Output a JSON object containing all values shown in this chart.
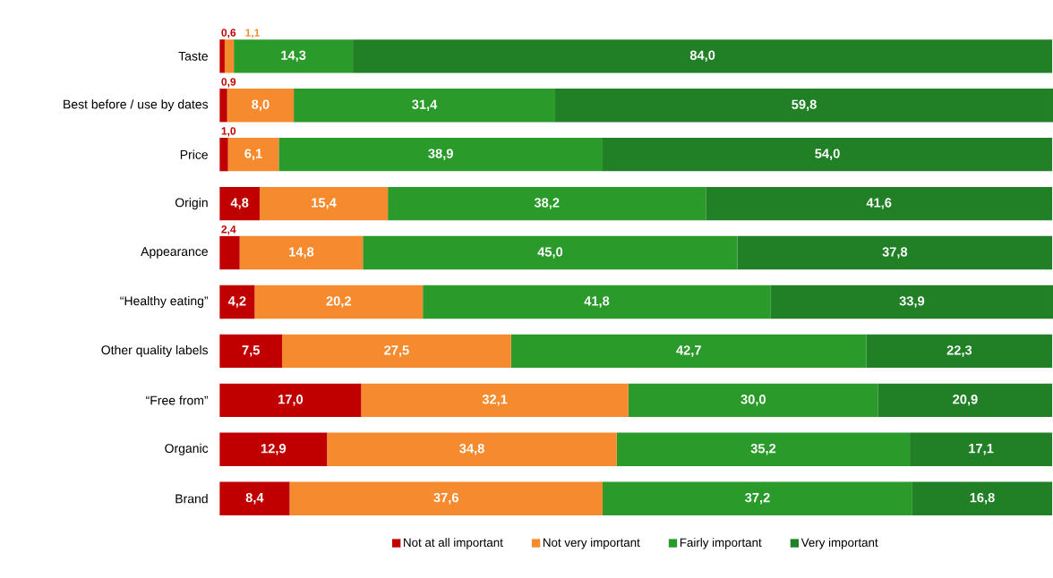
{
  "chart_data": {
    "type": "bar",
    "orientation": "horizontal",
    "stacked": true,
    "legend": "bottom",
    "categories": [
      "Taste",
      "Best before / use by dates",
      "Price",
      "Origin",
      "Appearance",
      "“Healthy eating”",
      "Other quality labels",
      "“Free from”",
      "Organic",
      "Brand"
    ],
    "series": [
      {
        "name": "Not at all important",
        "color": "#c00000",
        "values": [
          0.6,
          0.9,
          1.0,
          4.8,
          2.4,
          4.2,
          7.5,
          17.0,
          12.9,
          8.4
        ],
        "value_labels": [
          "0,6",
          "0,9",
          "1,0",
          "4,8",
          "2,4",
          "4,2",
          "7,5",
          "17,0",
          "12,9",
          "8,4"
        ]
      },
      {
        "name": "Not very important",
        "color": "#f58a2e",
        "values": [
          1.1,
          8.0,
          6.1,
          15.4,
          14.8,
          20.2,
          27.5,
          32.1,
          34.8,
          37.6
        ],
        "value_labels": [
          "1,1",
          "8,0",
          "6,1",
          "15,4",
          "14,8",
          "20,2",
          "27,5",
          "32,1",
          "34,8",
          "37,6"
        ]
      },
      {
        "name": "Fairly important",
        "color": "#2a9a2a",
        "values": [
          14.3,
          31.4,
          38.9,
          38.2,
          45.0,
          41.8,
          42.7,
          30.0,
          35.2,
          37.2
        ],
        "value_labels": [
          "14,3",
          "31,4",
          "38,9",
          "38,2",
          "45,0",
          "41,8",
          "42,7",
          "30,0",
          "35,2",
          "37,2"
        ]
      },
      {
        "name": "Very important",
        "color": "#217f26",
        "values": [
          84.0,
          59.8,
          54.0,
          41.6,
          37.8,
          33.9,
          22.3,
          20.9,
          17.1,
          16.8
        ],
        "value_labels": [
          "84,0",
          "59,8",
          "54,0",
          "41,6",
          "37,8",
          "33,9",
          "22,3",
          "20,9",
          "17,1",
          "16,8"
        ]
      }
    ]
  }
}
